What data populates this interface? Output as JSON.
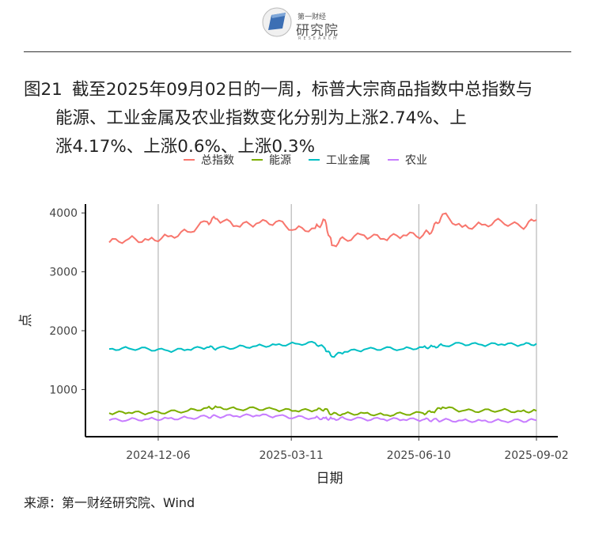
{
  "logo": {
    "small_text": "第一财经",
    "big_text": "研究院",
    "sub_text": "RESEARCH"
  },
  "title": {
    "number": "图21",
    "line1": "截至2025年09月02日的一周，标普大宗商品指数中总指数与",
    "line2": "能源、工业金属及农业指数变化分别为上涨2.74%、上",
    "line3": "涨4.17%、上涨0.6%、上涨0.3%"
  },
  "source": "来源：第一财经研究院、Wind",
  "chart_data": {
    "type": "line",
    "xlabel": "日期",
    "ylabel": "点",
    "x_ticks": [
      "2024-12-06",
      "2025-03-11",
      "2025-06-10",
      "2025-09-02"
    ],
    "x_tick_positions": [
      "2024-12-06",
      "2025-03-11",
      "2025-06-10",
      "2025-09-02"
    ],
    "x_range": [
      "2024-11-01",
      "2025-09-02"
    ],
    "y_ticks": [
      1000,
      2000,
      3000,
      4000
    ],
    "ylim": [
      200,
      4150
    ],
    "grid": "vertical lines at x ticks",
    "legend_position": "top",
    "series": [
      {
        "name": "总指数",
        "color": "#F8766D",
        "x": [
          "2024-11-01",
          "2024-11-15",
          "2024-11-29",
          "2024-12-13",
          "2024-12-27",
          "2025-01-10",
          "2025-01-17",
          "2025-01-31",
          "2025-02-14",
          "2025-02-28",
          "2025-03-14",
          "2025-03-28",
          "2025-04-04",
          "2025-04-09",
          "2025-04-18",
          "2025-05-02",
          "2025-05-16",
          "2025-05-30",
          "2025-06-13",
          "2025-06-20",
          "2025-06-27",
          "2025-07-11",
          "2025-07-25",
          "2025-08-08",
          "2025-08-22",
          "2025-09-02"
        ],
        "values": [
          3500,
          3560,
          3540,
          3600,
          3680,
          3850,
          3900,
          3780,
          3820,
          3850,
          3720,
          3740,
          3880,
          3450,
          3560,
          3620,
          3560,
          3620,
          3620,
          3720,
          3980,
          3760,
          3800,
          3860,
          3760,
          3880
        ]
      },
      {
        "name": "能源",
        "color": "#7CAE00",
        "x": [
          "2024-11-01",
          "2024-11-15",
          "2024-11-29",
          "2024-12-13",
          "2024-12-27",
          "2025-01-10",
          "2025-01-17",
          "2025-01-31",
          "2025-02-14",
          "2025-02-28",
          "2025-03-14",
          "2025-03-28",
          "2025-04-04",
          "2025-04-09",
          "2025-04-18",
          "2025-05-02",
          "2025-05-16",
          "2025-05-30",
          "2025-06-13",
          "2025-06-20",
          "2025-06-27",
          "2025-07-11",
          "2025-07-25",
          "2025-08-08",
          "2025-08-22",
          "2025-09-02"
        ],
        "values": [
          600,
          610,
          600,
          620,
          640,
          690,
          700,
          670,
          680,
          660,
          640,
          650,
          670,
          580,
          590,
          600,
          570,
          590,
          600,
          620,
          700,
          640,
          640,
          650,
          630,
          640
        ]
      },
      {
        "name": "工业金属",
        "color": "#00BFC4",
        "x": [
          "2024-11-01",
          "2024-11-15",
          "2024-11-29",
          "2024-12-13",
          "2024-12-27",
          "2025-01-10",
          "2025-01-17",
          "2025-01-31",
          "2025-02-14",
          "2025-02-28",
          "2025-03-14",
          "2025-03-28",
          "2025-04-04",
          "2025-04-09",
          "2025-04-18",
          "2025-05-02",
          "2025-05-16",
          "2025-05-30",
          "2025-06-13",
          "2025-06-20",
          "2025-06-27",
          "2025-07-11",
          "2025-07-25",
          "2025-08-08",
          "2025-08-22",
          "2025-09-02"
        ],
        "values": [
          1690,
          1700,
          1690,
          1660,
          1680,
          1720,
          1700,
          1720,
          1740,
          1760,
          1780,
          1790,
          1700,
          1560,
          1640,
          1680,
          1700,
          1690,
          1720,
          1730,
          1750,
          1780,
          1760,
          1770,
          1760,
          1780
        ]
      },
      {
        "name": "农业",
        "color": "#C77CFF",
        "x": [
          "2024-11-01",
          "2024-11-15",
          "2024-11-29",
          "2024-12-13",
          "2024-12-27",
          "2025-01-10",
          "2025-01-17",
          "2025-01-31",
          "2025-02-14",
          "2025-02-28",
          "2025-03-14",
          "2025-03-28",
          "2025-04-04",
          "2025-04-09",
          "2025-04-18",
          "2025-05-02",
          "2025-05-16",
          "2025-05-30",
          "2025-06-13",
          "2025-06-20",
          "2025-06-27",
          "2025-07-11",
          "2025-07-25",
          "2025-08-08",
          "2025-08-22",
          "2025-09-02"
        ],
        "values": [
          480,
          490,
          500,
          510,
          520,
          540,
          545,
          550,
          560,
          550,
          530,
          520,
          515,
          505,
          510,
          500,
          495,
          490,
          490,
          485,
          480,
          475,
          470,
          470,
          472,
          478
        ]
      }
    ]
  }
}
